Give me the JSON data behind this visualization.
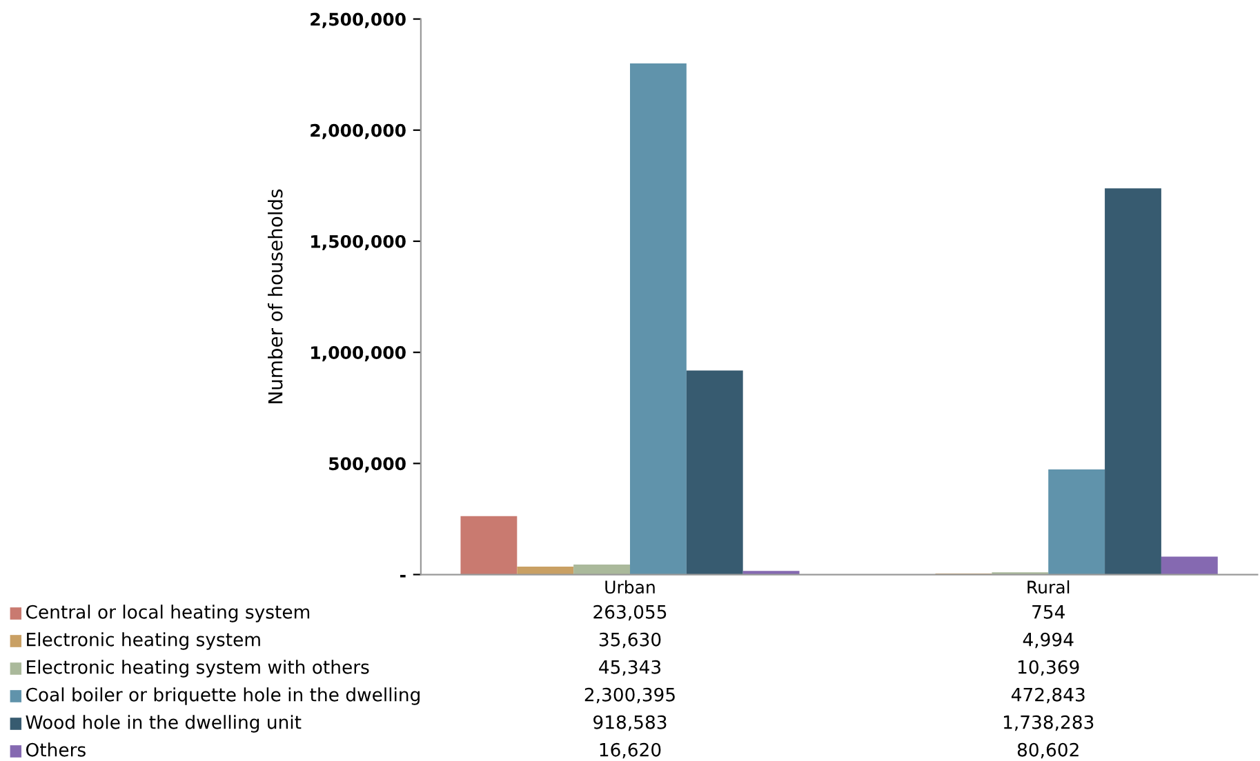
{
  "chart_data": {
    "type": "bar",
    "ylabel": "Number of households",
    "categories": [
      "Urban",
      "Rural"
    ],
    "series": [
      {
        "name": "Central or local heating system",
        "color": "#c97a70",
        "values": [
          263055,
          754
        ],
        "value_labels": [
          "263,055",
          "754"
        ]
      },
      {
        "name": "Electronic heating system",
        "color": "#c9a064",
        "values": [
          35630,
          4994
        ],
        "value_labels": [
          "35,630",
          "4,994"
        ]
      },
      {
        "name": "Electronic heating system with others",
        "color": "#aab99b",
        "values": [
          45343,
          10369
        ],
        "value_labels": [
          "45,343",
          "10,369"
        ]
      },
      {
        "name": "Coal boiler or briquette hole in the dwelling",
        "color": "#6093ab",
        "values": [
          2300395,
          472843
        ],
        "value_labels": [
          "2,300,395",
          "472,843"
        ]
      },
      {
        "name": "Wood hole in the dwelling unit",
        "color": "#375b70",
        "values": [
          918583,
          1738283
        ],
        "value_labels": [
          "918,583",
          "1,738,283"
        ]
      },
      {
        "name": "Others",
        "color": "#8569b1",
        "values": [
          16620,
          80602
        ],
        "value_labels": [
          "16,620",
          "80,602"
        ]
      }
    ],
    "ylim": [
      0,
      2500000
    ],
    "yticks": [
      {
        "value": 0,
        "label": "-"
      },
      {
        "value": 500000,
        "label": "500,000"
      },
      {
        "value": 1000000,
        "label": "1,000,000"
      },
      {
        "value": 1500000,
        "label": "1,500,000"
      },
      {
        "value": 2000000,
        "label": "2,000,000"
      },
      {
        "value": 2500000,
        "label": "2,500,000"
      }
    ],
    "grid": false,
    "legend": "bottom"
  }
}
